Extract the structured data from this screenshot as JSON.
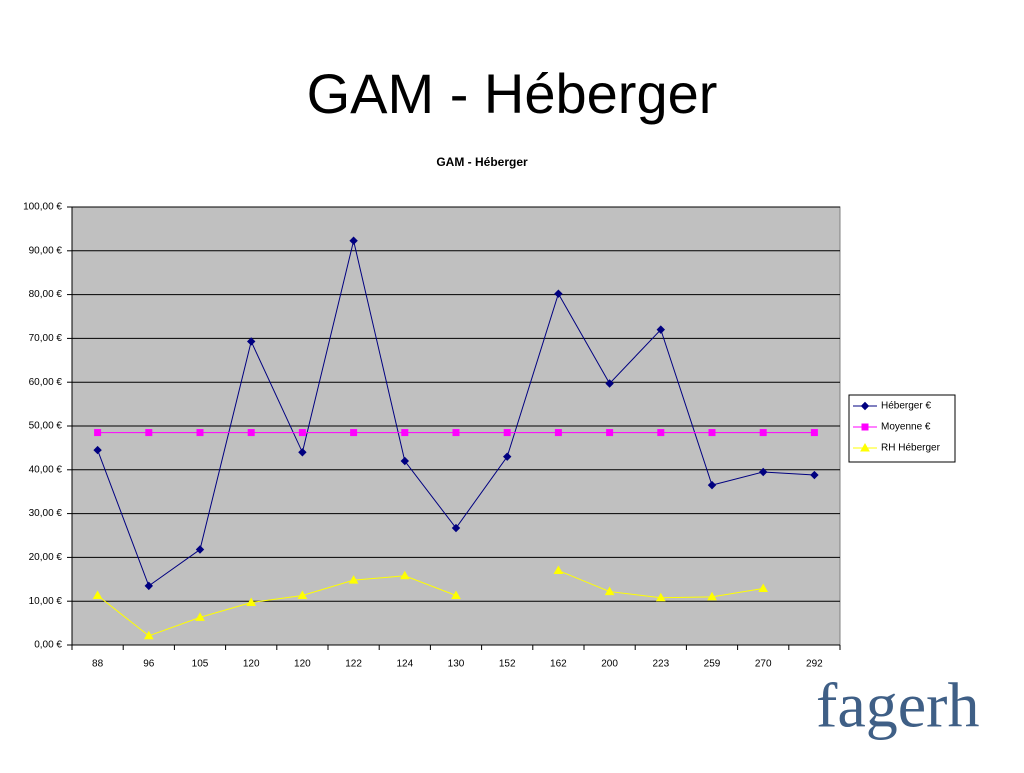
{
  "slide": {
    "title": "GAM - Héberger",
    "logo": "fagerh"
  },
  "chart_data": {
    "type": "line",
    "title": "GAM - Héberger",
    "categories": [
      "88",
      "96",
      "105",
      "120",
      "120",
      "122",
      "124",
      "130",
      "152",
      "162",
      "200",
      "223",
      "259",
      "270",
      "292"
    ],
    "series": [
      {
        "name": "Héberger €",
        "color": "#000080",
        "marker": "diamond",
        "values": [
          44.5,
          13.5,
          21.8,
          69.3,
          44.0,
          92.3,
          42.0,
          26.7,
          43.0,
          80.2,
          59.7,
          72.0,
          36.5,
          39.5,
          38.8
        ]
      },
      {
        "name": "Moyenne €",
        "color": "#ff00ff",
        "marker": "square",
        "values": [
          48.5,
          48.5,
          48.5,
          48.5,
          48.5,
          48.5,
          48.5,
          48.5,
          48.5,
          48.5,
          48.5,
          48.5,
          48.5,
          48.5,
          48.5
        ]
      },
      {
        "name": "RH Héberger",
        "color": "#ffff00",
        "marker": "triangle",
        "values": [
          11.3,
          2.1,
          6.3,
          9.7,
          11.3,
          14.8,
          15.8,
          11.3,
          null,
          17.0,
          12.2,
          10.8,
          11.0,
          12.9,
          null
        ]
      }
    ],
    "ylim": [
      0,
      100
    ],
    "yticks": [
      {
        "value": 0,
        "label": "0,00 €"
      },
      {
        "value": 10,
        "label": "10,00 €"
      },
      {
        "value": 20,
        "label": "20,00 €"
      },
      {
        "value": 30,
        "label": "30,00 €"
      },
      {
        "value": 40,
        "label": "40,00 €"
      },
      {
        "value": 50,
        "label": "50,00 €"
      },
      {
        "value": 60,
        "label": "60,00 €"
      },
      {
        "value": 70,
        "label": "70,00 €"
      },
      {
        "value": 80,
        "label": "80,00 €"
      },
      {
        "value": 90,
        "label": "90,00 €"
      },
      {
        "value": 100,
        "label": "100,00 €"
      }
    ],
    "grid": true,
    "legend": "right"
  }
}
